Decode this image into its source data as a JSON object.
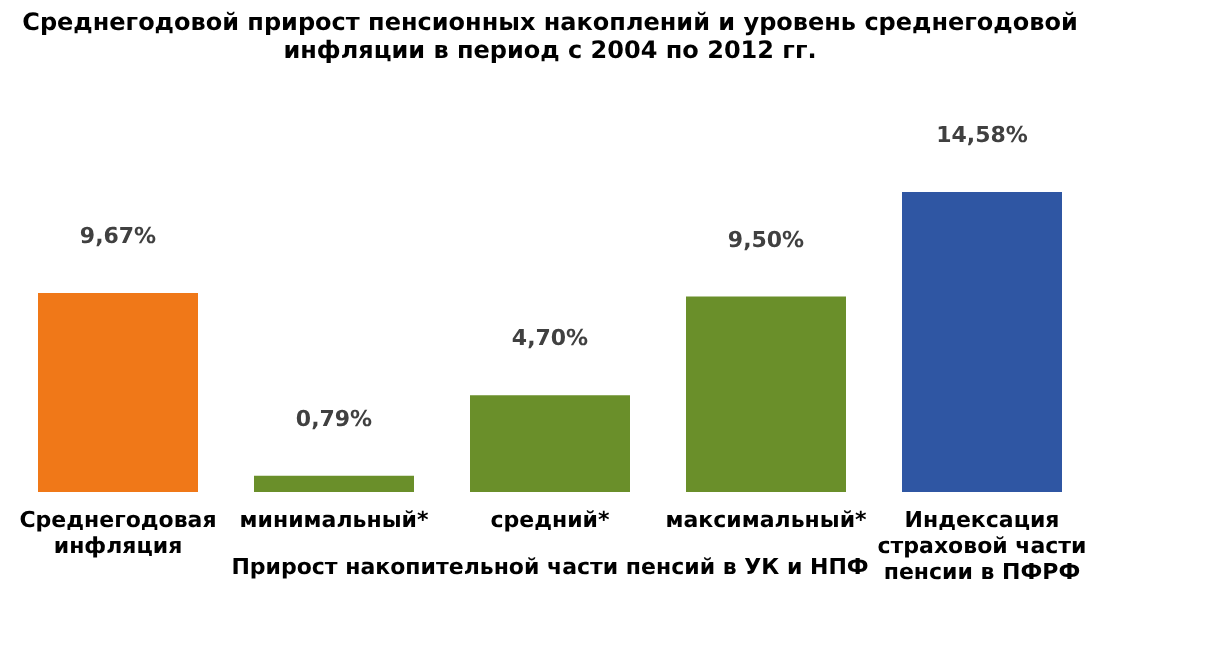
{
  "chart_data": {
    "type": "bar",
    "title": "Среднегодовой прирост пенсионных накоплений и уровень среднегодовой\nинфляции в период с 2004 по 2012 гг.",
    "categories": [
      "Среднегодовая\nинфляция",
      "минимальный*",
      "средний*",
      "максимальный*",
      "Индексация\nстраховой части\nпенсии в ПФРФ"
    ],
    "values": [
      9.67,
      0.79,
      4.7,
      9.5,
      14.58
    ],
    "value_labels": [
      "9,67%",
      "0,79%",
      "4,70%",
      "9,50%",
      "14,58%"
    ],
    "colors": [
      "#f07818",
      "#6a8f2a",
      "#6a8f2a",
      "#6a8f2a",
      "#2f56a3"
    ],
    "annotations": [
      "Прирост накопительной части пенсий в УК и НПФ"
    ],
    "grid": false
  }
}
